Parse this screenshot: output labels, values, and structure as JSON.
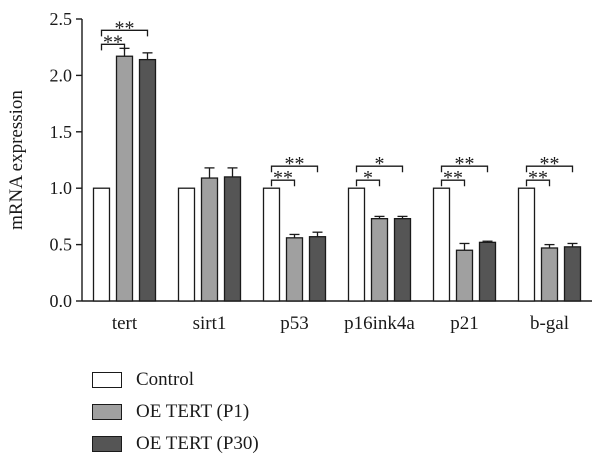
{
  "chart_data": {
    "type": "bar",
    "title": "",
    "xlabel": "",
    "ylabel": "mRNA expression",
    "ylim": [
      0,
      2.5
    ],
    "yticks": [
      "0.0",
      "0.5",
      "1.0",
      "1.5",
      "2.0",
      "2.5"
    ],
    "categories": [
      "tert",
      "sirt1",
      "p53",
      "p16ink4a",
      "p21",
      "b-gal"
    ],
    "series": [
      {
        "name": "Control",
        "color": "#ffffff",
        "values": [
          1.0,
          1.0,
          1.0,
          1.0,
          1.0,
          1.0
        ],
        "errors": [
          0,
          0,
          0,
          0,
          0,
          0
        ]
      },
      {
        "name": "OE TERT (P1)",
        "color": "#a0a0a0",
        "values": [
          2.17,
          1.09,
          0.56,
          0.73,
          0.45,
          0.47
        ],
        "errors": [
          0.07,
          0.09,
          0.03,
          0.02,
          0.06,
          0.03
        ]
      },
      {
        "name": "OE TERT (P30)",
        "color": "#555555",
        "values": [
          2.14,
          1.1,
          0.57,
          0.73,
          0.52,
          0.48
        ],
        "errors": [
          0.06,
          0.08,
          0.04,
          0.02,
          0.01,
          0.03
        ]
      }
    ],
    "significance": [
      {
        "category": "tert",
        "marks": [
          "**",
          "**"
        ]
      },
      {
        "category": "p53",
        "marks": [
          "**",
          "**"
        ]
      },
      {
        "category": "p16ink4a",
        "marks": [
          "*",
          "*"
        ]
      },
      {
        "category": "p21",
        "marks": [
          "**",
          "**"
        ]
      },
      {
        "category": "b-gal",
        "marks": [
          "**",
          "**"
        ]
      }
    ],
    "grid": false,
    "legend_position": "bottom-left"
  }
}
